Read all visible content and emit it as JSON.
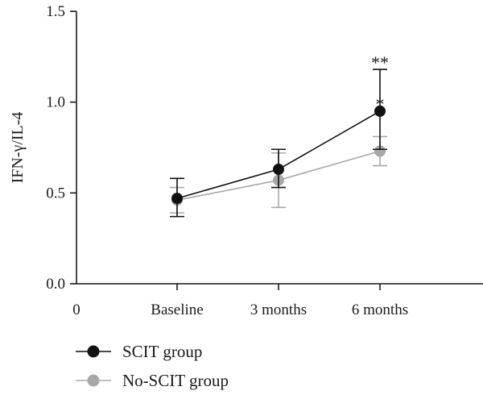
{
  "chart_data": {
    "type": "line",
    "ylabel": "IFN-γ/IL-4",
    "xlabel": "",
    "x_origin_label": "0",
    "categories": [
      "Baseline",
      "3 months",
      "6 months"
    ],
    "ylim": [
      0,
      1.5
    ],
    "yticks": [
      "0.0",
      "0.5",
      "1.0",
      "1.5"
    ],
    "grid": false,
    "legend_position": "bottom-left",
    "series": [
      {
        "name": "SCIT group",
        "color": "#111111",
        "values": [
          0.47,
          0.63,
          0.95
        ],
        "err_low": [
          0.37,
          0.53,
          0.74
        ],
        "err_high": [
          0.58,
          0.74,
          1.18
        ]
      },
      {
        "name": "No-SCIT group",
        "color": "#a8a8a8",
        "values": [
          0.46,
          0.57,
          0.73
        ],
        "err_low": [
          0.39,
          0.42,
          0.65
        ],
        "err_high": [
          0.53,
          0.72,
          0.81
        ]
      }
    ],
    "annotations": [
      {
        "text": "**",
        "category": "6 months",
        "y": 1.23
      },
      {
        "text": "*",
        "category": "6 months",
        "y": 1.0
      }
    ]
  }
}
